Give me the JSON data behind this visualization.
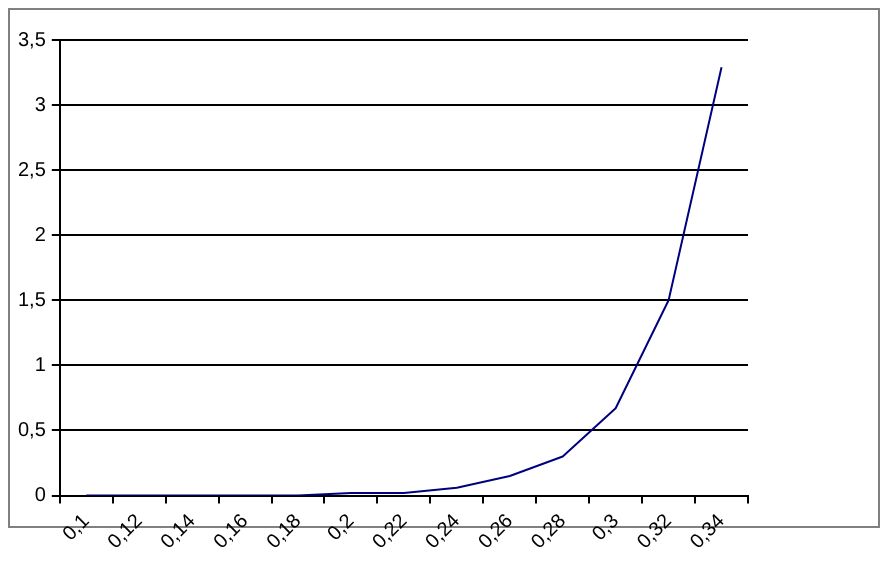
{
  "chart_data": {
    "type": "line",
    "categories": [
      "0,1",
      "0,12",
      "0,14",
      "0,16",
      "0,18",
      "0,2",
      "0,22",
      "0,24",
      "0,26",
      "0,28",
      "0,3",
      "0,32",
      "0,34"
    ],
    "series": [
      {
        "color": "#000080",
        "values": [
          0,
          0,
          0,
          0,
          0,
          0.02,
          0.02,
          0.06,
          0.15,
          0.3,
          0.67,
          1.5,
          3.29
        ]
      }
    ],
    "ylim": [
      0,
      3.5
    ],
    "yticks": [
      {
        "value": 0,
        "label": "0"
      },
      {
        "value": 0.5,
        "label": "0,5"
      },
      {
        "value": 1,
        "label": "1"
      },
      {
        "value": 1.5,
        "label": "1,5"
      },
      {
        "value": 2,
        "label": "2"
      },
      {
        "value": 2.5,
        "label": "2,5"
      },
      {
        "value": 3,
        "label": "3"
      },
      {
        "value": 3.5,
        "label": "3,5"
      }
    ],
    "grid": "y",
    "legend": false,
    "marker": "none",
    "line_style": "solid"
  }
}
